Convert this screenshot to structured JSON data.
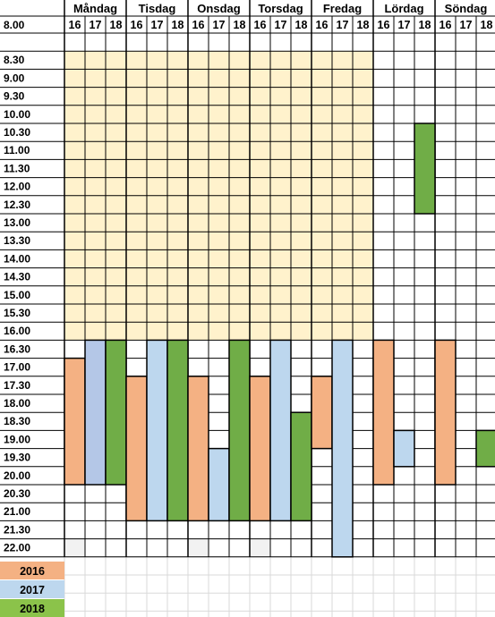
{
  "days": [
    "Måndag",
    "Tisdag",
    "Onsdag",
    "Torsdag",
    "Fredag",
    "Lördag",
    "Söndag"
  ],
  "years": [
    "16",
    "17",
    "18"
  ],
  "times": [
    "8.00",
    "8.30",
    "9.00",
    "9.30",
    "10.00",
    "10.30",
    "11.00",
    "11.30",
    "12.00",
    "12.30",
    "13.00",
    "13.30",
    "14.00",
    "14.30",
    "15.00",
    "15.30",
    "16.00",
    "16.30",
    "17.00",
    "17.30",
    "18.00",
    "18.30",
    "19.00",
    "19.30",
    "20.00",
    "20.30",
    "21.00",
    "21.30",
    "22.00"
  ],
  "legend": [
    {
      "label": "2016",
      "color": "#f4b183"
    },
    {
      "label": "2017",
      "color": "#bdd7ee"
    },
    {
      "label": "2018",
      "color": "#8bc34a"
    }
  ],
  "colors": {
    "y16": "#f4b183",
    "y17": "#bdd7ee",
    "y17_dark": "#b4c7e7",
    "y18": "#70ad47",
    "weekday_daytime": "#fff2cc",
    "faint_cell": "#f2f2f2",
    "grid": "#000000",
    "empty_grid": "#d9d9d9"
  },
  "bars": [
    {
      "day": 0,
      "year": 0,
      "from": "17.00",
      "to": "20.00",
      "color": "y16"
    },
    {
      "day": 0,
      "year": 1,
      "from": "16.30",
      "to": "20.00",
      "color": "y17_dark"
    },
    {
      "day": 0,
      "year": 2,
      "from": "16.30",
      "to": "20.00",
      "color": "y18"
    },
    {
      "day": 1,
      "year": 0,
      "from": "17.30",
      "to": "21.00",
      "color": "y16"
    },
    {
      "day": 1,
      "year": 1,
      "from": "16.30",
      "to": "21.00",
      "color": "y17"
    },
    {
      "day": 1,
      "year": 2,
      "from": "16.30",
      "to": "21.00",
      "color": "y18"
    },
    {
      "day": 2,
      "year": 0,
      "from": "17.30",
      "to": "21.00",
      "color": "y16"
    },
    {
      "day": 2,
      "year": 1,
      "from": "19.30",
      "to": "21.00",
      "color": "y17"
    },
    {
      "day": 2,
      "year": 2,
      "from": "16.30",
      "to": "21.00",
      "color": "y18"
    },
    {
      "day": 3,
      "year": 0,
      "from": "17.30",
      "to": "21.00",
      "color": "y16"
    },
    {
      "day": 3,
      "year": 1,
      "from": "16.30",
      "to": "21.00",
      "color": "y17"
    },
    {
      "day": 3,
      "year": 2,
      "from": "18.30",
      "to": "21.00",
      "color": "y18"
    },
    {
      "day": 4,
      "year": 0,
      "from": "17.30",
      "to": "19.00",
      "color": "y16"
    },
    {
      "day": 4,
      "year": 1,
      "from": "16.30",
      "to": "22.00",
      "color": "y17"
    },
    {
      "day": 5,
      "year": 0,
      "from": "16.30",
      "to": "20.00",
      "color": "y16"
    },
    {
      "day": 5,
      "year": 1,
      "from": "19.00",
      "to": "19.30",
      "color": "y17"
    },
    {
      "day": 5,
      "year": 2,
      "from": "10.30",
      "to": "12.30",
      "color": "y18"
    },
    {
      "day": 6,
      "year": 0,
      "from": "16.30",
      "to": "20.00",
      "color": "y16"
    },
    {
      "day": 6,
      "year": 2,
      "from": "19.00",
      "to": "19.30",
      "color": "y18"
    }
  ]
}
